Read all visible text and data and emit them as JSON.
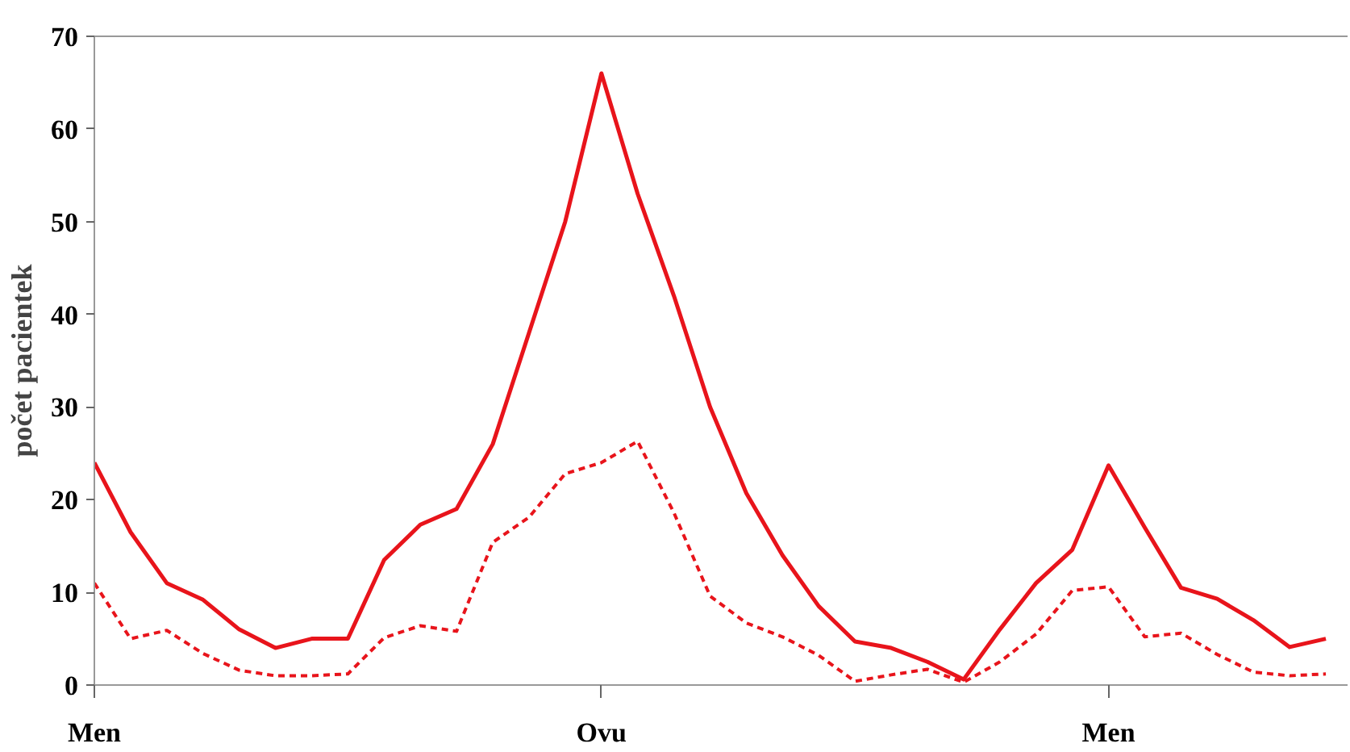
{
  "chart_data": {
    "type": "line",
    "ylabel": "počet pacientek",
    "ylim": [
      0,
      70
    ],
    "yticks": [
      0,
      10,
      20,
      30,
      40,
      50,
      60,
      70
    ],
    "grid": false,
    "categories": [
      "Men",
      null,
      null,
      null,
      null,
      null,
      null,
      null,
      null,
      null,
      null,
      null,
      null,
      null,
      "Ovu",
      null,
      null,
      null,
      null,
      null,
      null,
      null,
      null,
      null,
      null,
      null,
      null,
      null,
      "Men",
      null,
      null,
      null,
      null,
      null,
      null
    ],
    "series": [
      {
        "color": "#e8141b",
        "line_style": "solid",
        "values": [
          24,
          16.5,
          11,
          9.2,
          6,
          4,
          5,
          5,
          13.5,
          17.3,
          19,
          26,
          38,
          50,
          66,
          53,
          42,
          30,
          20.7,
          14,
          8.5,
          4.7,
          4,
          2.5,
          0.6,
          6,
          11,
          14.6,
          23.7,
          17,
          10.5,
          9.3,
          7,
          4.1,
          5
        ]
      },
      {
        "color": "#e8141b",
        "line_style": "dashed",
        "values": [
          11,
          5,
          5.9,
          3.4,
          1.6,
          1,
          1,
          1.2,
          5.1,
          6.4,
          5.8,
          15.4,
          18.1,
          22.8,
          24,
          26.3,
          18.6,
          9.6,
          6.7,
          5.2,
          3.2,
          0.4,
          1.1,
          1.7,
          0.3,
          2.5,
          5.5,
          10.2,
          10.6,
          5.2,
          5.6,
          3.3,
          1.4,
          1,
          1.2
        ]
      }
    ]
  }
}
